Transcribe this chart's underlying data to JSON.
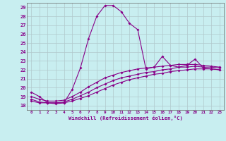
{
  "xlabel": "Windchill (Refroidissement éolien,°C)",
  "bg_color": "#c8eef0",
  "grid_color": "#b0c8cc",
  "line_color": "#880088",
  "x_hours": [
    0,
    1,
    2,
    3,
    4,
    5,
    6,
    7,
    8,
    9,
    10,
    11,
    12,
    13,
    14,
    15,
    16,
    17,
    18,
    19,
    20,
    21,
    22,
    23
  ],
  "series1": [
    19.5,
    19.0,
    18.3,
    18.2,
    18.3,
    19.8,
    22.2,
    25.5,
    28.0,
    29.2,
    29.2,
    28.5,
    27.2,
    26.5,
    22.1,
    22.3,
    23.5,
    22.5,
    22.3,
    22.5,
    23.2,
    22.2,
    22.1,
    22.0
  ],
  "series2": [
    18.5,
    18.3,
    18.3,
    18.3,
    18.3,
    18.5,
    18.8,
    19.1,
    19.5,
    19.9,
    20.3,
    20.6,
    20.9,
    21.1,
    21.3,
    21.5,
    21.6,
    21.8,
    21.9,
    22.0,
    22.1,
    22.1,
    22.1,
    22.0
  ],
  "series3": [
    18.7,
    18.4,
    18.3,
    18.3,
    18.4,
    18.7,
    19.1,
    19.5,
    20.0,
    20.4,
    20.8,
    21.1,
    21.3,
    21.5,
    21.7,
    21.8,
    22.0,
    22.1,
    22.3,
    22.3,
    22.4,
    22.3,
    22.3,
    22.2
  ],
  "series4": [
    19.0,
    18.7,
    18.5,
    18.5,
    18.6,
    19.0,
    19.5,
    20.1,
    20.6,
    21.1,
    21.4,
    21.7,
    21.9,
    22.1,
    22.2,
    22.3,
    22.4,
    22.5,
    22.6,
    22.6,
    22.6,
    22.5,
    22.4,
    22.3
  ],
  "ylim": [
    17.5,
    29.5
  ],
  "yticks": [
    18,
    19,
    20,
    21,
    22,
    23,
    24,
    25,
    26,
    27,
    28,
    29
  ],
  "xtick_labels": [
    "0",
    "1",
    "2",
    "3",
    "4",
    "5",
    "6",
    "7",
    "8",
    "9",
    "10",
    "11",
    "12",
    "13",
    "14",
    "15",
    "16",
    "17",
    "18",
    "19",
    "20",
    "21",
    "22",
    "23"
  ]
}
